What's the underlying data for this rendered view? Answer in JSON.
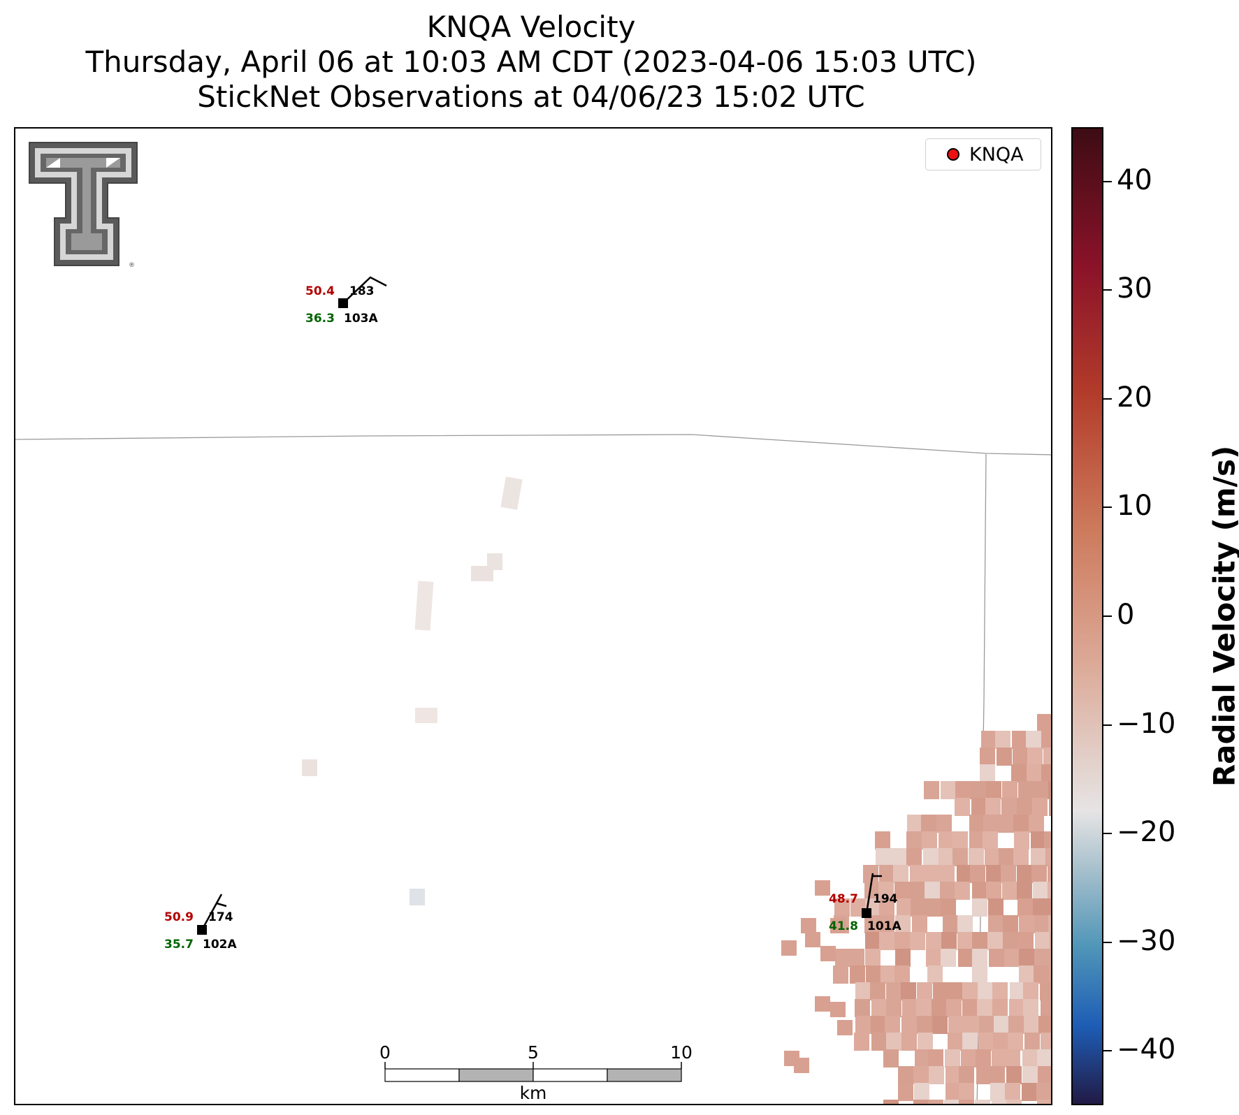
{
  "title": {
    "line1": "KNQA Velocity",
    "line2": "Thursday, April 06 at 10:03 AM CDT (2023-04-06 15:03 UTC)",
    "line3": "StickNet Observations at 04/06/23 15:02 UTC"
  },
  "legend": {
    "label": "KNQA",
    "marker_color": "#ee1111"
  },
  "logo": {
    "name": "Texas Tech Double T",
    "registered_mark": "®"
  },
  "stations": [
    {
      "id": "103A",
      "temperature": "50.4",
      "pressure_or_dir": "183",
      "dewpoint": "36.3"
    },
    {
      "id": "102A",
      "temperature": "50.9",
      "pressure_or_dir": "174",
      "dewpoint": "35.7"
    },
    {
      "id": "101A",
      "temperature": "48.7",
      "pressure_or_dir": "194",
      "dewpoint": "41.8"
    }
  ],
  "scale_bar": {
    "labels": [
      "0",
      "5",
      "10"
    ],
    "unit": "km"
  },
  "colorbar": {
    "title": "Radial Velocity (m/s)",
    "ticks": [
      "40",
      "30",
      "20",
      "10",
      "0",
      "−10",
      "−20",
      "−30",
      "−40"
    ],
    "range": [
      -45,
      45
    ]
  },
  "colors": {
    "positive_velocity": "#d9a393",
    "near_zero": "#ece6e4",
    "text_red": "#b30000",
    "text_green": "#006400"
  }
}
